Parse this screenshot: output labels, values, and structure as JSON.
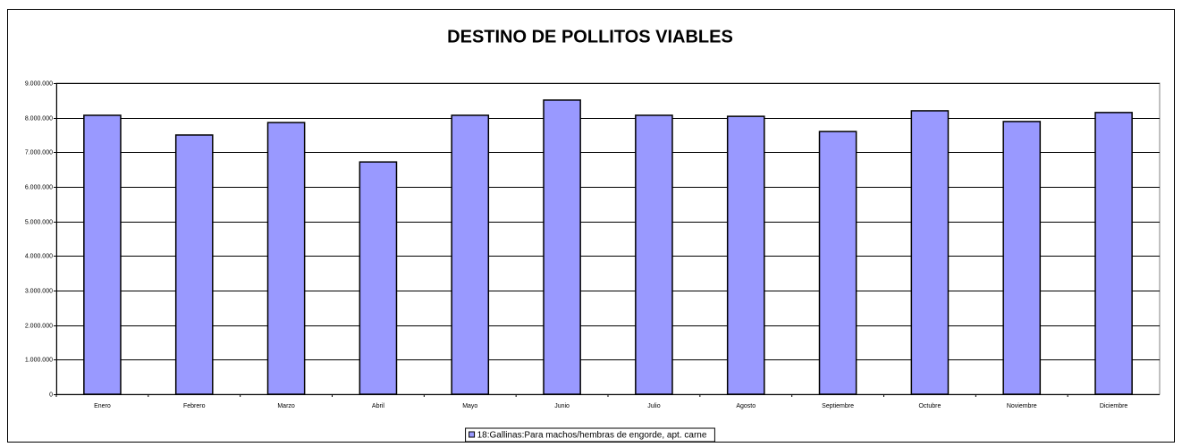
{
  "chart_data": {
    "type": "bar",
    "title": "DESTINO DE POLLITOS VIABLES",
    "categories": [
      "Enero",
      "Febrero",
      "Marzo",
      "Abril",
      "Mayo",
      "Junio",
      "Julio",
      "Agosto",
      "Septiembre",
      "Octubre",
      "Noviembre",
      "Diciembre"
    ],
    "series": [
      {
        "name": "18:Gallinas:Para machos/hembras de engorde, apt. carne",
        "color": "#9999ff",
        "values": [
          8070000,
          7500000,
          7860000,
          6720000,
          8070000,
          8510000,
          8070000,
          8040000,
          7600000,
          8200000,
          7890000,
          8150000
        ]
      }
    ],
    "ylim": [
      0,
      9000000
    ],
    "yticks": [
      0,
      {
        "value": 1000000,
        "label": "1.000.000"
      },
      {
        "value": 2000000,
        "label": "2.000.000"
      },
      {
        "value": 3000000,
        "label": "3.000.000"
      },
      {
        "value": 4000000,
        "label": "4.000.000"
      },
      {
        "value": 5000000,
        "label": "5.000.000"
      },
      {
        "value": 6000000,
        "label": "6.000.000"
      },
      {
        "value": 7000000,
        "label": "7.000.000"
      },
      {
        "value": 8000000,
        "label": "8.000.000"
      },
      {
        "value": 9000000,
        "label": "9.000.000"
      }
    ],
    "grid": true,
    "legend": "bottom"
  }
}
